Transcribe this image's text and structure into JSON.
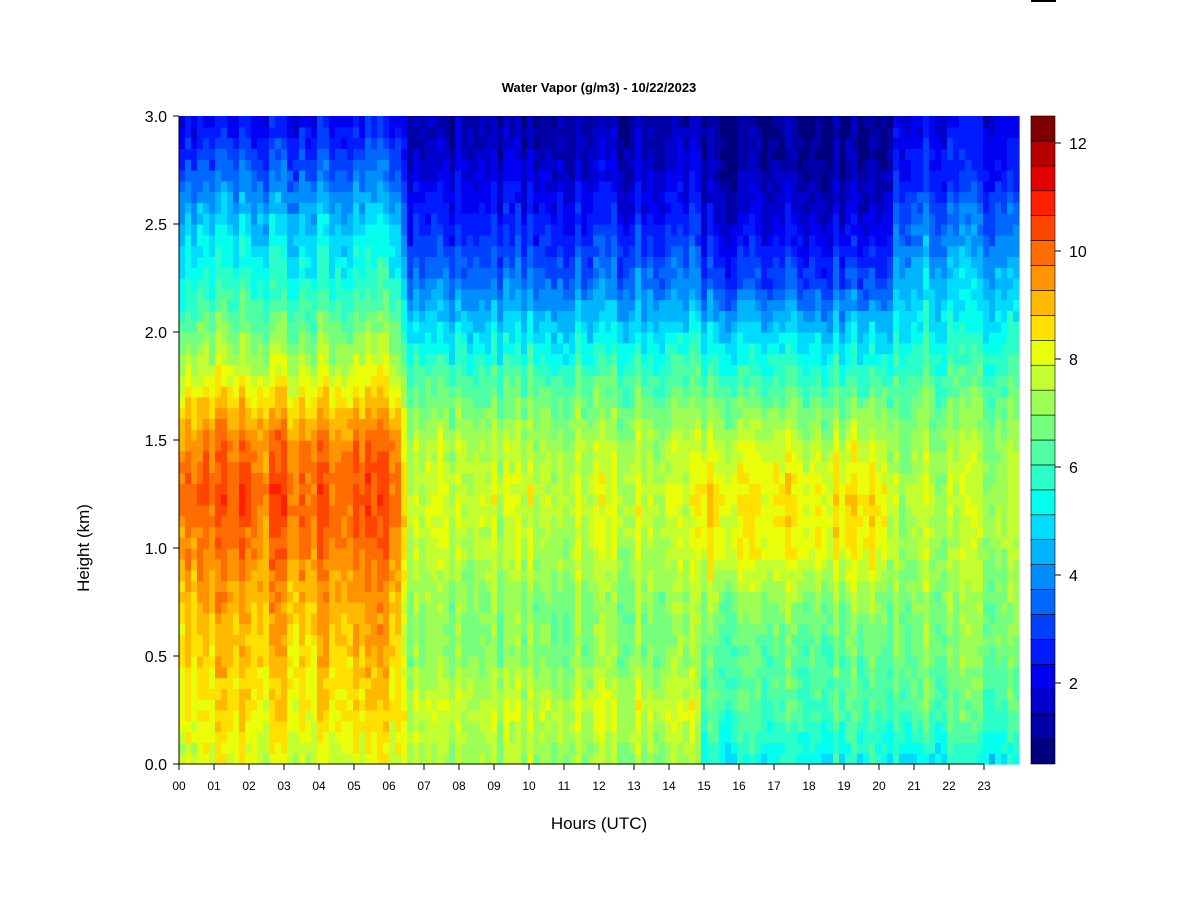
{
  "chart_data": {
    "type": "heatmap",
    "title": "Water Vapor (g/m3) - 10/22/2023",
    "xlabel": "Hours (UTC)",
    "ylabel": "Height (km)",
    "xlim": [
      0,
      24
    ],
    "ylim": [
      0.0,
      3.0
    ],
    "x_ticks": [
      "00",
      "01",
      "02",
      "03",
      "04",
      "05",
      "06",
      "07",
      "08",
      "09",
      "10",
      "11",
      "12",
      "13",
      "14",
      "15",
      "16",
      "17",
      "18",
      "19",
      "20",
      "21",
      "22",
      "23"
    ],
    "y_ticks": [
      "0.0",
      "0.5",
      "1.0",
      "1.5",
      "2.0",
      "2.5",
      "3.0"
    ],
    "colorbar": {
      "min": 0.5,
      "max": 12.5,
      "levels": 24,
      "ticks": [
        "2",
        "4",
        "6",
        "8",
        "10",
        "12"
      ],
      "colors": [
        "#00007f",
        "#0000a6",
        "#0000cc",
        "#0000f2",
        "#001bff",
        "#0041ff",
        "#0068ff",
        "#008eff",
        "#00b5ff",
        "#00dbff",
        "#05ffef",
        "#2affc9",
        "#50ffa3",
        "#76ff7d",
        "#9dff56",
        "#c3ff30",
        "#e9ff0a",
        "#ffe000",
        "#ffba00",
        "#ff9300",
        "#ff6d00",
        "#ff4600",
        "#ff2000",
        "#e20000",
        "#b80000",
        "#7f0000"
      ]
    },
    "grid": false,
    "profiles": [
      {
        "hours": "00-06.5",
        "values_by_height": {
          "0.0": 7.8,
          "0.25": 8.5,
          "0.5": 8.8,
          "0.75": 9.2,
          "1.0": 9.8,
          "1.25": 10.2,
          "1.5": 9.8,
          "1.75": 8.2,
          "2.0": 6.8,
          "2.25": 5.6,
          "2.5": 4.8,
          "2.75": 3.4,
          "3.0": 2.2
        }
      },
      {
        "hours": "06.5-15",
        "values_by_height": {
          "0.0": 7.2,
          "0.25": 7.8,
          "0.5": 7.0,
          "0.75": 7.0,
          "1.0": 7.6,
          "1.25": 7.8,
          "1.5": 7.4,
          "1.75": 6.4,
          "2.0": 5.0,
          "2.25": 3.6,
          "2.5": 2.6,
          "2.75": 1.8,
          "3.0": 1.2
        }
      },
      {
        "hours": "15-20.5",
        "values_by_height": {
          "0.0": 5.4,
          "0.25": 6.2,
          "0.5": 6.4,
          "0.75": 7.0,
          "1.0": 8.2,
          "1.25": 8.4,
          "1.5": 7.6,
          "1.75": 6.2,
          "2.0": 4.8,
          "2.25": 3.0,
          "2.5": 2.0,
          "2.75": 1.2,
          "3.0": 0.9
        }
      },
      {
        "hours": "20.5-24",
        "values_by_height": {
          "0.0": 5.2,
          "0.25": 6.4,
          "0.5": 6.8,
          "0.75": 7.0,
          "1.0": 7.4,
          "1.25": 7.6,
          "1.5": 7.2,
          "1.75": 6.4,
          "2.0": 5.4,
          "2.25": 4.6,
          "2.5": 3.6,
          "2.75": 2.6,
          "3.0": 2.0
        }
      }
    ]
  }
}
